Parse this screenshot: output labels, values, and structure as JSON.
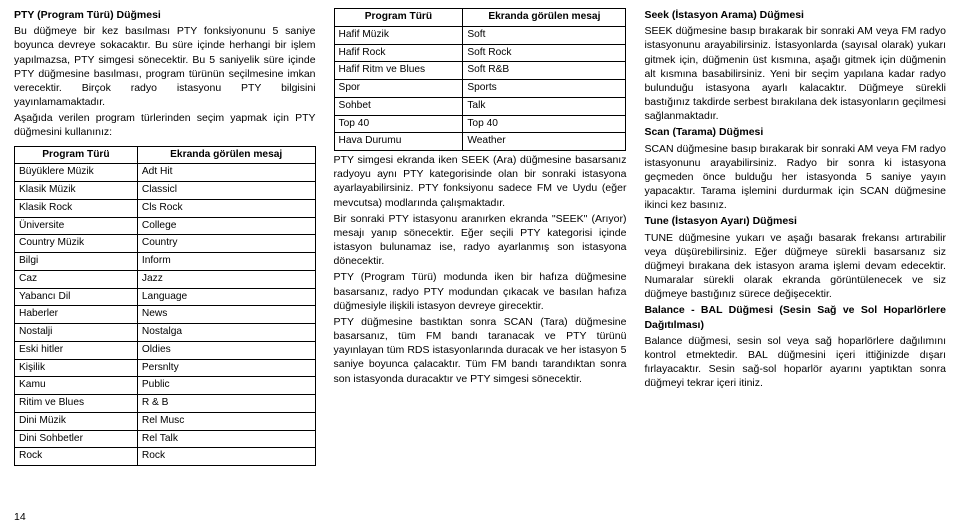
{
  "col1": {
    "title": "PTY (Program Türü) Düğmesi",
    "p1": "Bu düğmeye bir kez basılması PTY fonksiyonunu 5 saniye boyunca devreye sokacaktır. Bu süre içinde herhangi bir işlem yapılmazsa, PTY simgesi sönecektir. Bu 5 saniyelik süre içinde PTY düğmesine basılması, program türünün seçilmesine imkan verecektir. Birçok radyo istasyonu PTY bilgisini yayınlamamaktadır.",
    "p2": "Aşağıda verilen program türlerinden seçim yapmak için PTY düğmesini kullanınız:",
    "table": {
      "headers": [
        "Program Türü",
        "Ekranda görülen mesaj"
      ],
      "rows": [
        [
          "Büyüklere Müzik",
          "Adt Hit"
        ],
        [
          "Klasik Müzik",
          "Classicl"
        ],
        [
          "Klasik Rock",
          "Cls Rock"
        ],
        [
          "Üniversite",
          "College"
        ],
        [
          "Country Müzik",
          "Country"
        ],
        [
          "Bilgi",
          "Inform"
        ],
        [
          "Caz",
          "Jazz"
        ],
        [
          "Yabancı Dil",
          "Language"
        ],
        [
          "Haberler",
          "News"
        ],
        [
          "Nostalji",
          "Nostalga"
        ],
        [
          "Eski hitler",
          "Oldies"
        ],
        [
          "Kişilik",
          "Persnlty"
        ],
        [
          "Kamu",
          "Public"
        ],
        [
          "Ritim ve Blues",
          "R & B"
        ],
        [
          "Dini Müzik",
          "Rel Musc"
        ],
        [
          "Dini Sohbetler",
          "Rel Talk"
        ],
        [
          "Rock",
          "Rock"
        ]
      ]
    }
  },
  "col2": {
    "table": {
      "headers": [
        "Program Türü",
        "Ekranda görülen mesaj"
      ],
      "rows": [
        [
          "Hafif Müzik",
          "Soft"
        ],
        [
          "Hafif Rock",
          "Soft Rock"
        ],
        [
          "Hafif Ritm ve Blues",
          "Soft R&B"
        ],
        [
          "Spor",
          "Sports"
        ],
        [
          "Sohbet",
          "Talk"
        ],
        [
          "Top 40",
          "Top 40"
        ],
        [
          "Hava Durumu",
          "Weather"
        ]
      ]
    },
    "p1": "PTY simgesi ekranda iken SEEK (Ara) düğmesine basarsanız radyoyu aynı PTY kategorisinde olan bir sonraki istasyona ayarlayabilirsiniz. PTY fonksiyonu sadece FM ve Uydu (eğer mevcutsa) modlarında çalışmaktadır.",
    "p2": "Bir sonraki PTY istasyonu aranırken ekranda \"SEEK\" (Arıyor) mesajı yanıp sönecektir. Eğer seçili PTY kategorisi içinde istasyon bulunamaz ise, radyo ayarlanmış son istasyona dönecektir.",
    "p3": "PTY (Program Türü) modunda iken bir hafıza düğmesine basarsanız, radyo PTY modundan çıkacak ve basılan hafıza düğmesiyle ilişkili istasyon devreye girecektir.",
    "p4": "PTY düğmesine bastıktan sonra SCAN (Tara) düğmesine basarsanız, tüm FM bandı taranacak ve PTY türünü yayınlayan tüm RDS istasyonlarında duracak ve her istasyon 5 saniye boyunca çalacaktır. Tüm FM bandı tarandıktan sonra son istasyonda duracaktır ve PTY simgesi sönecektir."
  },
  "col3": {
    "h1": "Seek (İstasyon Arama) Düğmesi",
    "p1": "SEEK düğmesine basıp bırakarak bir sonraki AM veya FM radyo istasyonunu arayabilirsiniz. İstasyonlarda (sayısal olarak) yukarı gitmek için, düğmenin üst kısmına, aşağı gitmek için düğmenin alt kısmına basabilirsiniz. Yeni bir seçim yapılana kadar radyo bulunduğu istasyona ayarlı kalacaktır. Düğmeye sürekli bastığınız takdirde serbest bırakılana dek istasyonların geçilmesi sağlanmaktadır.",
    "h2": "Scan (Tarama) Düğmesi",
    "p2": "SCAN düğmesine basıp bırakarak bir sonraki AM veya FM radyo istasyonunu arayabilirsiniz. Radyo bir sonra ki istasyona geçmeden önce bulduğu her istasyonda 5 saniye yayın yapacaktır. Tarama işlemini durdurmak için SCAN düğmesine ikinci kez basınız.",
    "h3": "Tune (İstasyon Ayarı) Düğmesi",
    "p3": "TUNE düğmesine yukarı ve aşağı basarak frekansı artırabilir veya düşürebilirsiniz. Eğer düğmeye sürekli basarsanız siz düğmeyi bırakana dek istasyon arama işlemi devam edecektir. Numaralar sürekli olarak ekranda görüntülenecek ve siz düğmeye bastığınız sürece değişecektir.",
    "h4": "Balance - BAL Düğmesi (Sesin Sağ ve Sol Hoparlörlere Dağıtılması)",
    "p4": "Balance düğmesi, sesin sol veya sağ hoparlörlere dağılımını kontrol etmektedir. BAL düğmesini içeri ittiğinizde dışarı fırlayacaktır. Sesin sağ-sol hoparlör ayarını yaptıktan sonra düğmeyi tekrar içeri itiniz."
  },
  "pageNumber": "14"
}
